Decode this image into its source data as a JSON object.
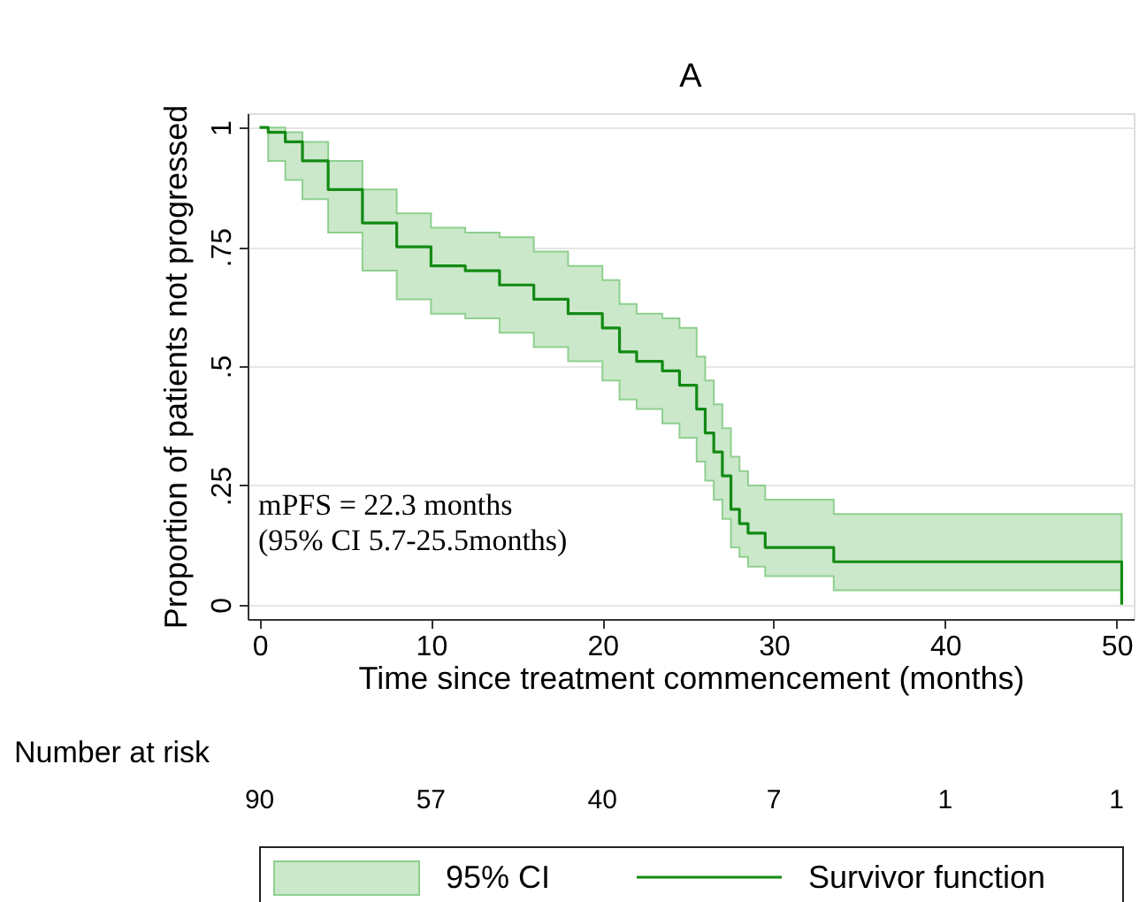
{
  "chart_data": {
    "type": "step",
    "title": "A",
    "xlabel": "Time since treatment commencement (months)",
    "ylabel": "Proportion of patients not progressed",
    "x": [
      0,
      0.5,
      1.5,
      2.5,
      4,
      6,
      8,
      10,
      12,
      14,
      16,
      18,
      20,
      21,
      22,
      23.5,
      24.5,
      25.5,
      26,
      26.5,
      27,
      27.5,
      28,
      28.5,
      29.5,
      33.5,
      50.3
    ],
    "series": [
      {
        "name": "95% CI",
        "type": "area",
        "color": "#cbe8cb",
        "values": [
          null,
          null,
          null,
          null,
          null,
          null,
          null,
          null,
          null,
          null,
          null,
          null,
          null,
          null,
          null,
          null,
          null,
          null,
          null,
          null,
          null,
          null,
          null,
          null,
          null,
          null,
          null
        ],
        "lower": [
          1,
          0.93,
          0.89,
          0.85,
          0.78,
          0.7,
          0.64,
          0.61,
          0.6,
          0.57,
          0.54,
          0.51,
          0.47,
          0.43,
          0.41,
          0.38,
          0.35,
          0.3,
          0.26,
          0.22,
          0.18,
          0.12,
          0.1,
          0.08,
          0.06,
          0.03,
          0.03
        ],
        "upper": [
          1,
          1,
          0.99,
          0.97,
          0.93,
          0.87,
          0.82,
          0.79,
          0.78,
          0.77,
          0.74,
          0.71,
          0.68,
          0.63,
          0.61,
          0.6,
          0.58,
          0.52,
          0.47,
          0.42,
          0.37,
          0.31,
          0.28,
          0.25,
          0.22,
          0.19,
          0.19
        ]
      },
      {
        "name": "Survivor function",
        "color": "#138a13",
        "values": [
          1,
          0.99,
          0.97,
          0.93,
          0.87,
          0.8,
          0.75,
          0.71,
          0.7,
          0.67,
          0.64,
          0.61,
          0.58,
          0.53,
          0.51,
          0.49,
          0.46,
          0.41,
          0.36,
          0.32,
          0.27,
          0.2,
          0.17,
          0.15,
          0.12,
          0.09,
          0
        ]
      }
    ],
    "xlim": [
      -0.7,
      51
    ],
    "xticks": [
      0,
      10,
      20,
      30,
      40,
      50
    ],
    "ylim": [
      -0.03,
      1.03
    ],
    "yticks": [
      0,
      {
        "value": 0.25,
        "label": ".25"
      },
      {
        "value": 0.5,
        "label": ".5"
      },
      {
        "value": 0.75,
        "label": ".75"
      },
      1
    ],
    "grid": "y",
    "legend": "bottom",
    "annotations": [
      "mPFS = 22.3 months",
      "(95% CI 5.7-25.5months)",
      "Number at risk",
      "90",
      "57",
      "40",
      "7",
      "1",
      "1"
    ]
  }
}
